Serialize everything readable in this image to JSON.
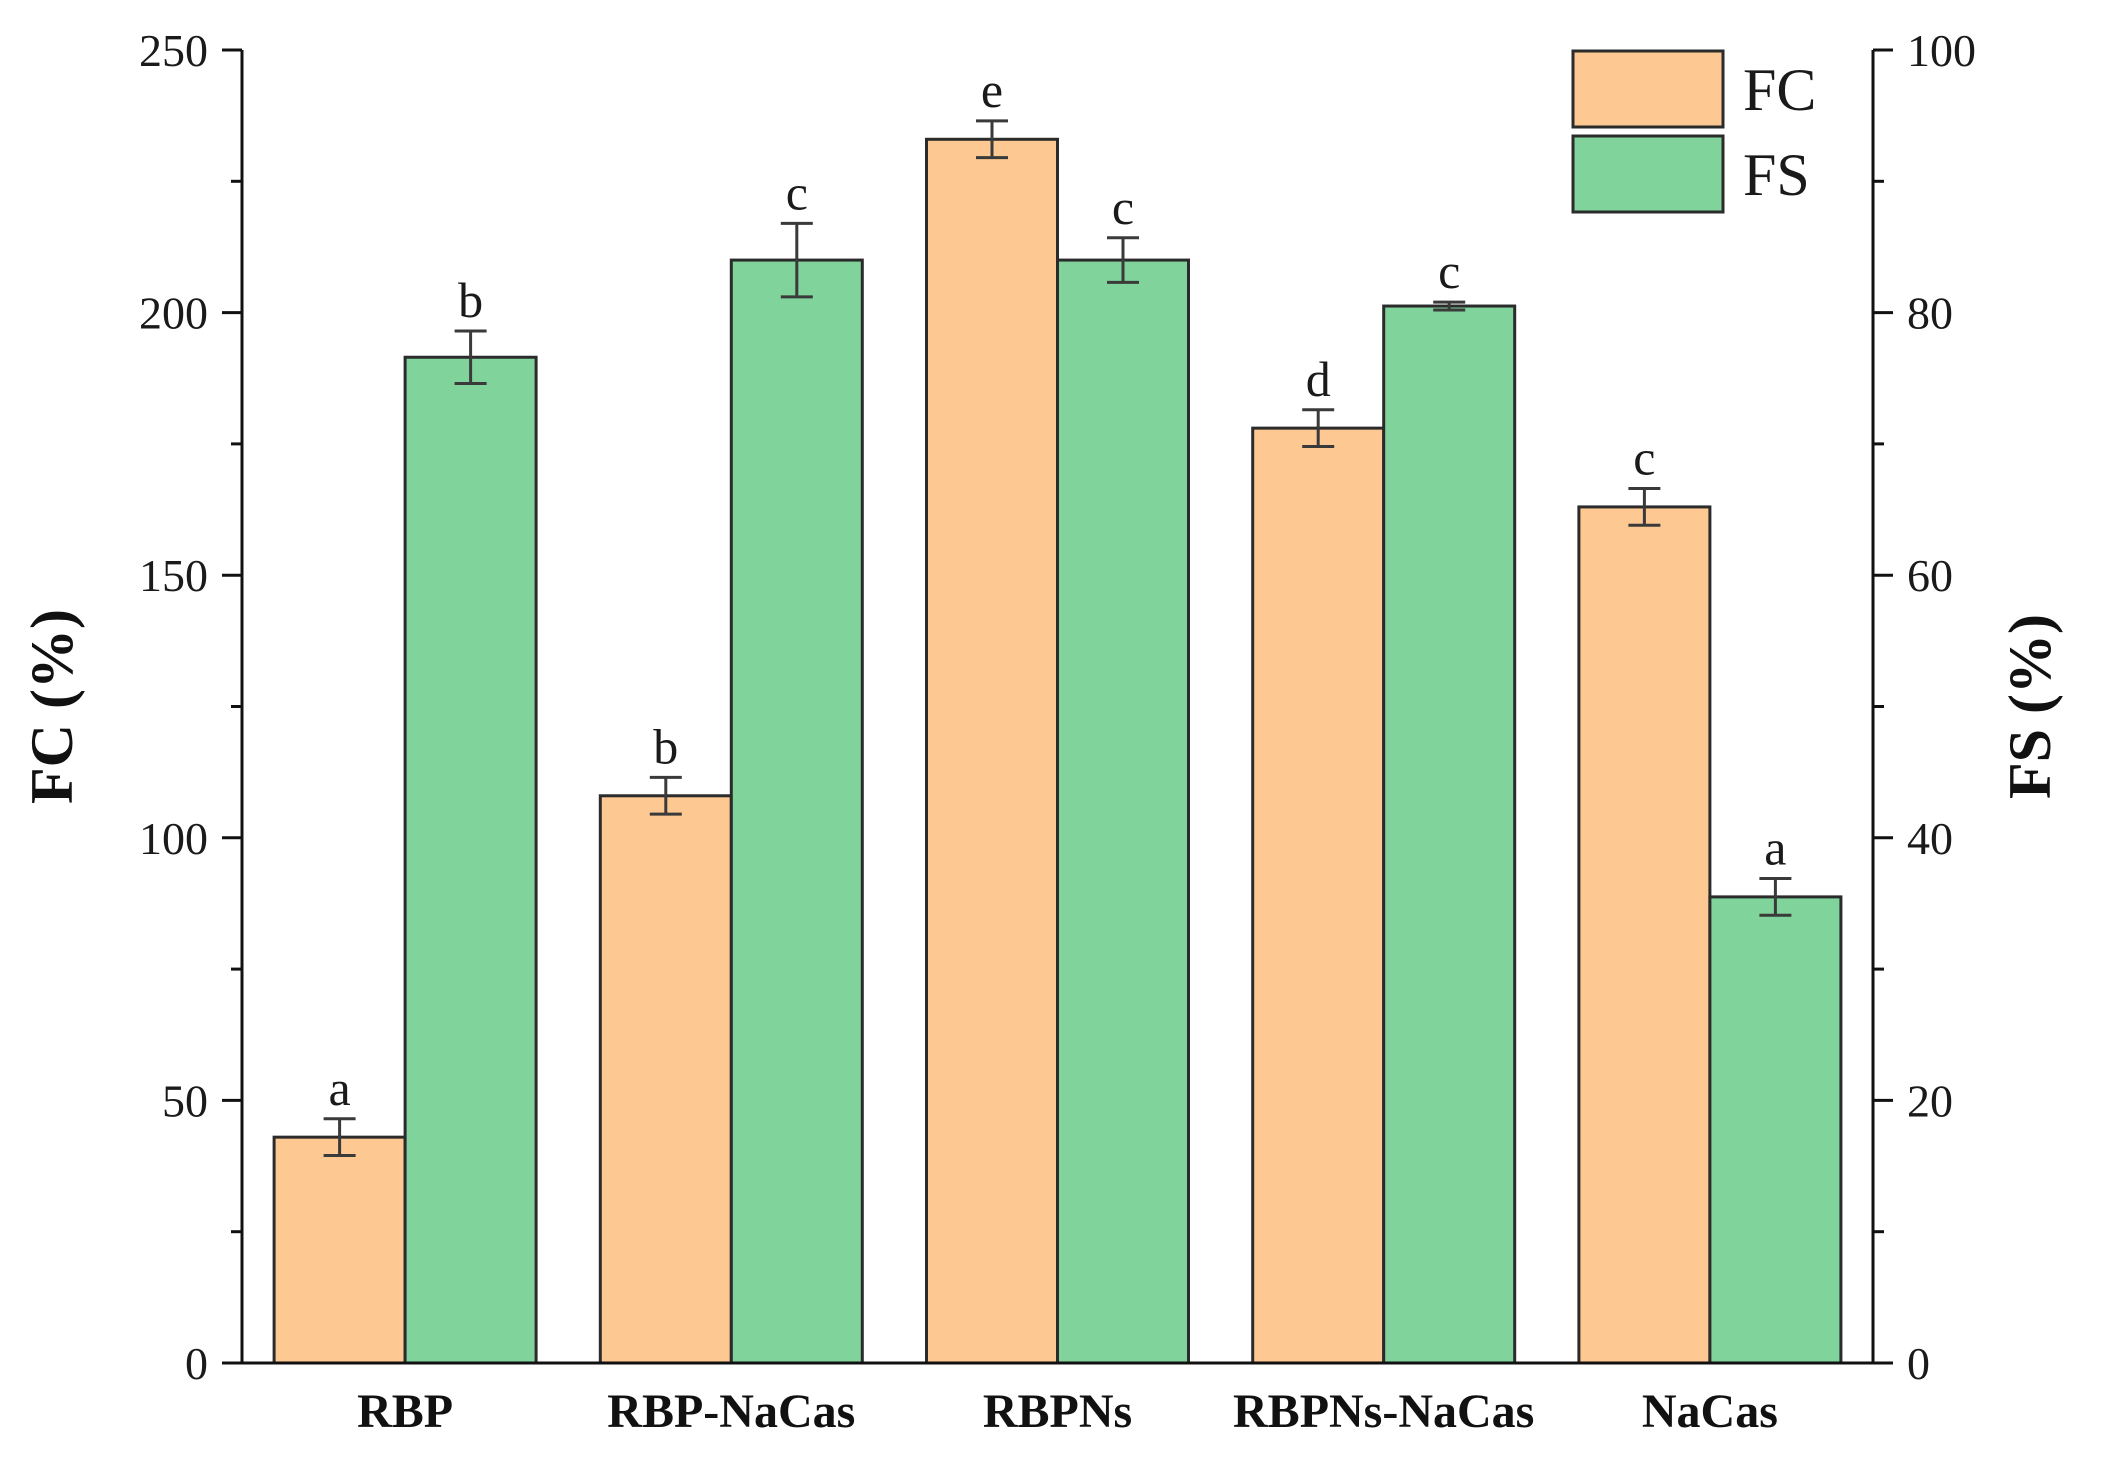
{
  "chart_data": {
    "type": "bar",
    "title": "",
    "xlabel": "",
    "categories": [
      "RBP",
      "RBP-NaCas",
      "RBPNs",
      "RBPNs-NaCas",
      "NaCas"
    ],
    "series": [
      {
        "name": "FC",
        "axis": "left",
        "color": "#FDC891",
        "values": [
          43,
          108,
          233,
          178,
          163
        ],
        "errors": [
          3.5,
          3.5,
          3.5,
          3.5,
          3.5
        ],
        "labels": [
          "a",
          "b",
          "e",
          "d",
          "c"
        ]
      },
      {
        "name": "FS",
        "axis": "right",
        "color": "#7FD39B",
        "values": [
          76.6,
          84,
          84,
          80.5,
          35.5
        ],
        "errors": [
          2,
          2.8,
          1.7,
          0.3,
          1.4
        ],
        "labels": [
          "b",
          "c",
          "c",
          "c",
          "a"
        ]
      }
    ],
    "ylabel_left": "FC (%)",
    "ylabel_right": "FS (%)",
    "ylim_left": [
      0,
      250
    ],
    "ylim_right": [
      0,
      100
    ],
    "yticks_left": [
      0,
      50,
      100,
      150,
      200,
      250
    ],
    "yticks_right": [
      0,
      20,
      40,
      60,
      80,
      100
    ],
    "grid": false,
    "legend": {
      "position": "top-right",
      "entries": [
        "FC",
        "FS"
      ]
    },
    "colors": {
      "axis": "#111111",
      "bar_edge": "#2b2b2b",
      "error_bar": "#3a3a3a"
    }
  }
}
